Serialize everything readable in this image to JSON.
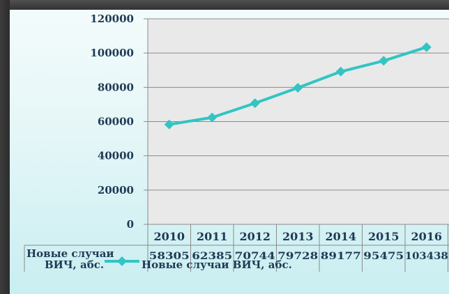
{
  "chart_data": {
    "type": "line",
    "categories": [
      "2010",
      "2011",
      "2012",
      "2013",
      "2014",
      "2015",
      "2016"
    ],
    "series": [
      {
        "name": "Новые случаи ВИЧ, абс.",
        "values": [
          58305,
          62385,
          70744,
          79728,
          89177,
          95475,
          103438
        ],
        "color": "#33c4c4"
      }
    ],
    "value_labels": [
      "58305",
      "62385",
      "70744",
      "79728",
      "89177",
      "95475",
      "103438"
    ],
    "yticks": [
      "0",
      "20000",
      "40000",
      "60000",
      "80000",
      "100000",
      "120000"
    ],
    "ylim": [
      0,
      120000
    ],
    "grid": true,
    "legend": "data-table",
    "table_row_label_line1": "Новые случаи",
    "table_row_label_line2": "ВИЧ, абс.",
    "legend_label": "Новые случаи ВИЧ, абс.",
    "plot_background": "#e9e9e9",
    "gridline_color": "#8a8a8a"
  }
}
